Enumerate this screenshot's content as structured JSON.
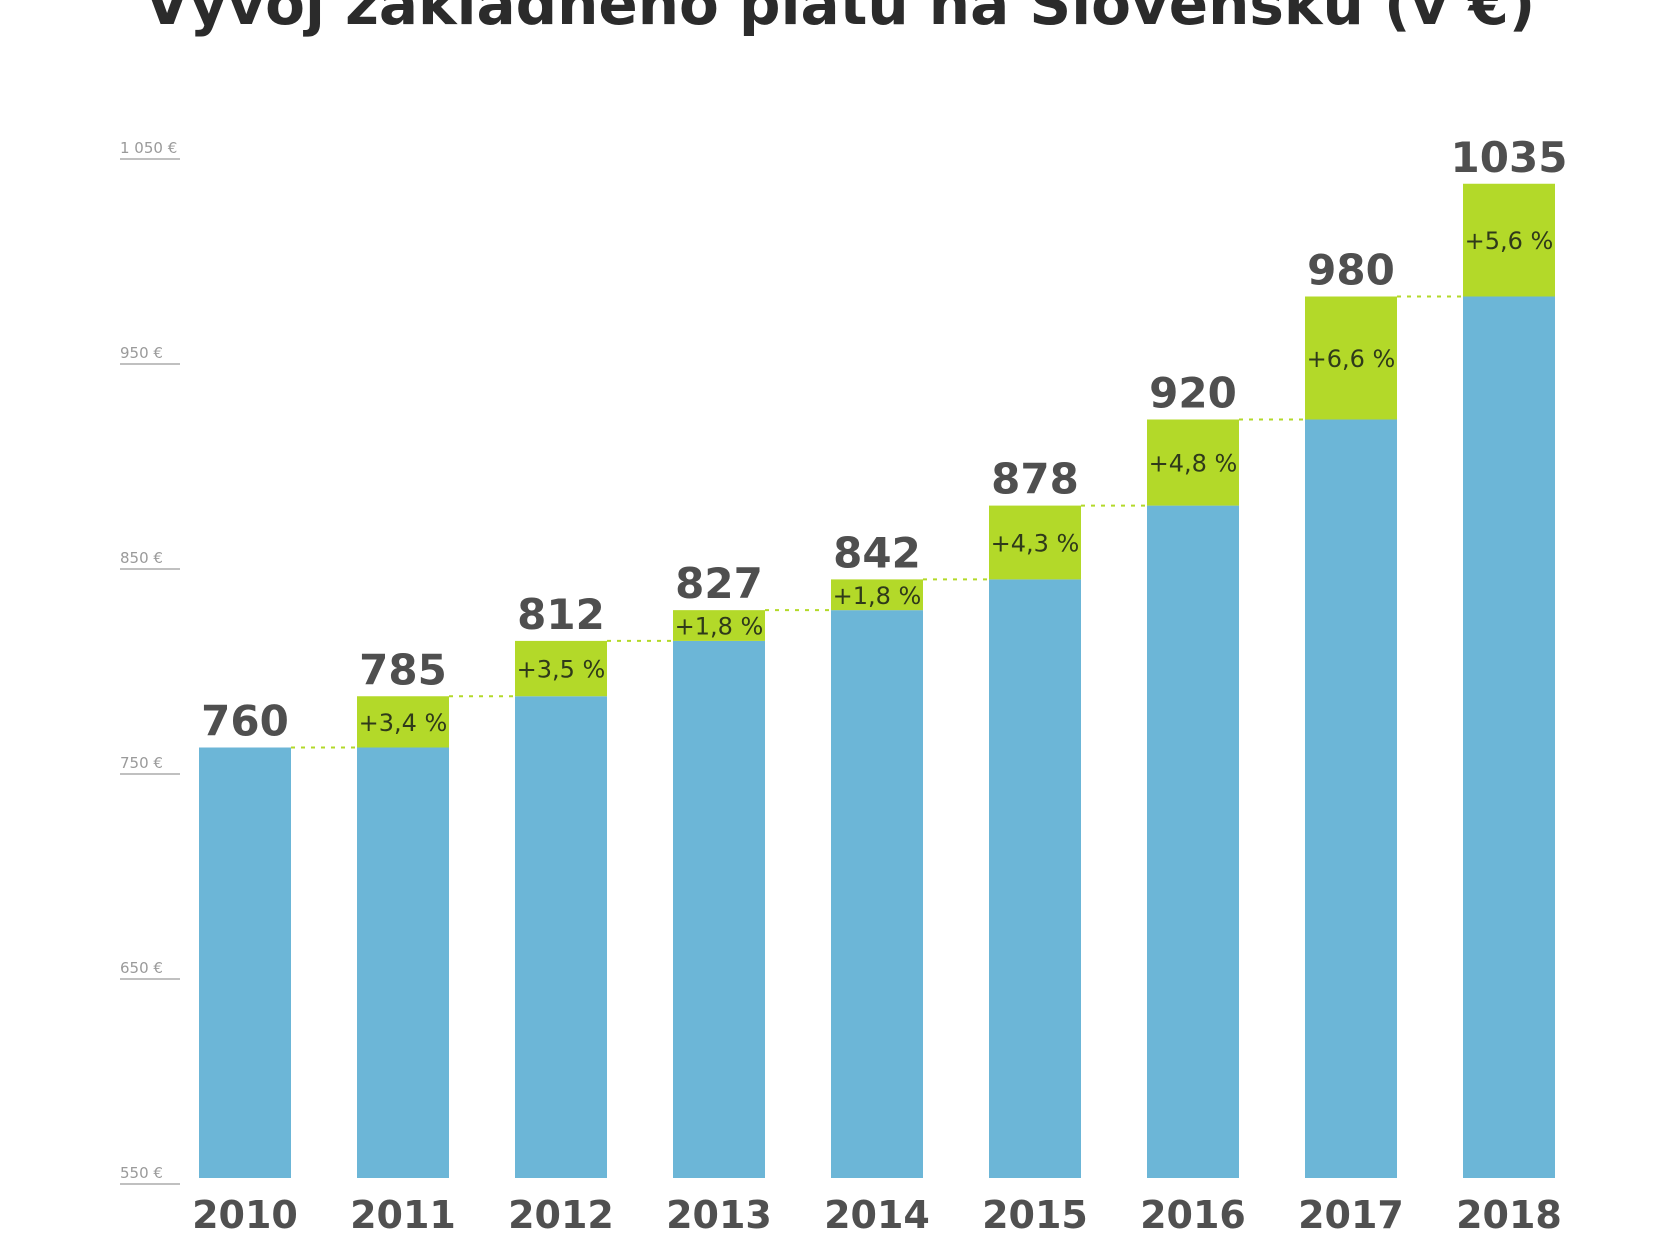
{
  "chart_data": {
    "type": "bar",
    "title": "Vývoj základného platu na Slovensku (v €)",
    "categories": [
      "2010",
      "2011",
      "2012",
      "2013",
      "2014",
      "2015",
      "2016",
      "2017",
      "2018"
    ],
    "values": [
      760,
      785,
      812,
      827,
      842,
      878,
      920,
      980,
      1035
    ],
    "value_labels": [
      "760",
      "785",
      "812",
      "827",
      "842",
      "878",
      "920",
      "980",
      "1035"
    ],
    "increase_labels": [
      "",
      "+3,4 %",
      "+3,5 %",
      "+1,8 %",
      "+1,8 %",
      "+4,3 %",
      "+4,8 %",
      "+6,6 %",
      "+5,6 %"
    ],
    "yticks": [
      550,
      650,
      750,
      850,
      950,
      1050
    ],
    "ytick_labels": [
      "550 €",
      "650 €",
      "750 €",
      "850 €",
      "950 €",
      "1 050 €"
    ],
    "ylim": [
      550,
      1050
    ],
    "grid": false,
    "legend": "none",
    "colors": {
      "base": "#6cb6d7",
      "increase": "#b3d929",
      "connector": "#b3d929",
      "tick": "#9a9a9a",
      "value_text": "#4f4f4f",
      "year_text": "#505050"
    }
  }
}
